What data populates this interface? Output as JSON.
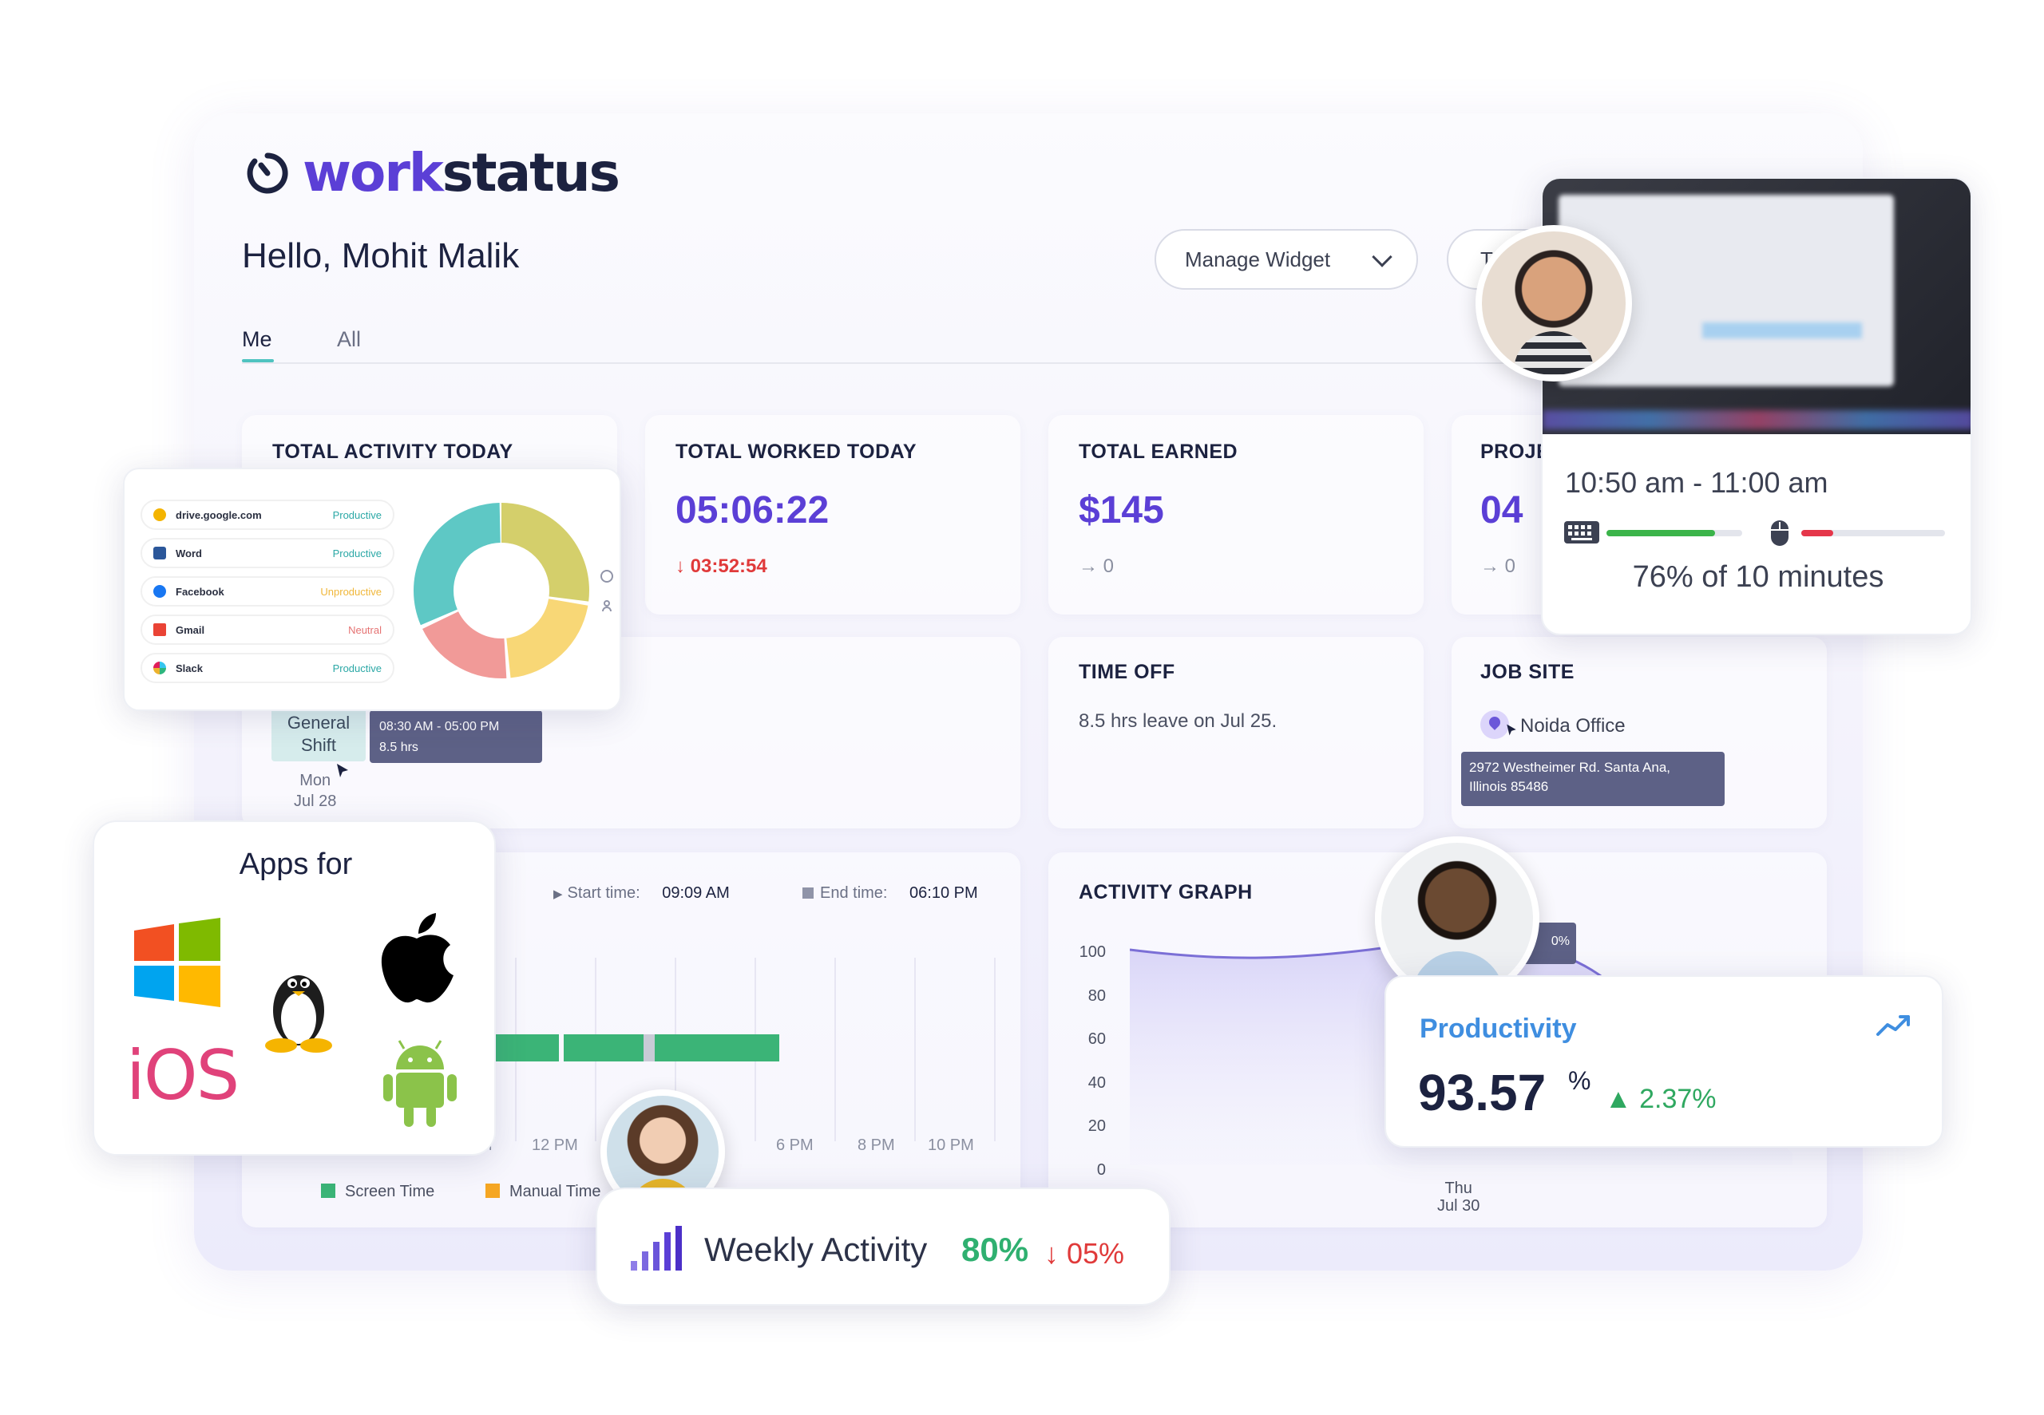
{
  "brand": {
    "name_part1": "work",
    "name_part2": "status",
    "accent": "#5b3fd6"
  },
  "greeting": "Hello, Mohit Malik",
  "toolbar": {
    "manage_widget_label": "Manage Widget",
    "second_button_label": "T"
  },
  "tabs": [
    {
      "label": "Me",
      "active": true
    },
    {
      "label": "All",
      "active": false
    }
  ],
  "cards": {
    "total_activity": {
      "title": "TOTAL ACTIVITY TODAY"
    },
    "total_worked": {
      "title": "TOTAL WORKED TODAY",
      "value": "05:06:22",
      "delta": "↓ 03:52:54"
    },
    "total_earned": {
      "title": "TOTAL EARNED",
      "value": "$145",
      "delta": "→ 0"
    },
    "projects": {
      "title": "PROJE",
      "value": "04",
      "delta": "→ 0"
    },
    "shift": {
      "name_line1": "General",
      "name_line2": "Shift",
      "time": "08:30 AM - 05:00 PM",
      "hours": "8.5 hrs",
      "day": "Mon",
      "date": "Jul 28"
    },
    "time_off": {
      "title": "TIME OFF",
      "text": "8.5 hrs leave on Jul 25."
    },
    "job_site": {
      "title": "JOB SITE",
      "location": "Noida Office",
      "address_line1": "2972 Westheimer Rd. Santa Ana,",
      "address_line2": "Illinois 85486"
    },
    "timeline": {
      "start_label": "Start time:",
      "start_value": "09:09 AM",
      "end_label": "End time:",
      "end_value": "06:10 PM",
      "ticks": [
        "M",
        "12 PM",
        "6 PM",
        "8 PM",
        "10 PM"
      ],
      "legend": [
        {
          "label": "Screen Time",
          "color": "#3bb477"
        },
        {
          "label": "Manual Time",
          "color": "#f5a623"
        }
      ]
    },
    "activity_graph": {
      "title": "ACTIVITY GRAPH",
      "y_ticks": [
        "100",
        "80",
        "60",
        "40",
        "20",
        "0"
      ],
      "x_day": "Thu",
      "x_date": "Jul 30",
      "tooltip": "0%"
    }
  },
  "activity_apps": [
    {
      "name": "drive.google.com",
      "status": "Productive",
      "bg": "#cdeef0",
      "status_color": "#2ba8a6",
      "icon_color": "#f4b400"
    },
    {
      "name": "Word",
      "status": "Productive",
      "bg": "#cdeef0",
      "status_color": "#2ba8a6",
      "icon_color": "#2b579a"
    },
    {
      "name": "Facebook",
      "status": "Unproductive",
      "bg": "#fdebc4",
      "status_color": "#f0b73a",
      "icon_color": "#1877f2"
    },
    {
      "name": "Gmail",
      "status": "Neutral",
      "bg": "#fbd0d0",
      "status_color": "#e57373",
      "icon_color": "#ea4335"
    },
    {
      "name": "Slack",
      "status": "Productive",
      "bg": "#cdeef0",
      "status_color": "#2ba8a6",
      "icon_color": "#4a154b"
    }
  ],
  "donut": {
    "segments": [
      {
        "pct": 27,
        "color": "#d4cf6b"
      },
      {
        "pct": 21,
        "color": "#f8d776"
      },
      {
        "pct": 19,
        "color": "#f19a98"
      },
      {
        "pct": 33,
        "color": "#5ec8c5"
      }
    ]
  },
  "screenshot_card": {
    "time_range": "10:50 am - 11:00 am",
    "keyboard_pct": 0.8,
    "mouse_pct": 0.22,
    "summary": "76% of 10 minutes"
  },
  "apps_card": {
    "title": "Apps for",
    "ios_label": "iOS",
    "platforms": [
      "windows-icon",
      "linux-icon",
      "apple-icon",
      "android-icon"
    ]
  },
  "weekly_activity": {
    "label": "Weekly Activity",
    "value": "80%",
    "delta": "↓ 05%"
  },
  "productivity": {
    "label": "Productivity",
    "value": "93.57",
    "unit": "%",
    "delta": "▲ 2.37%"
  }
}
